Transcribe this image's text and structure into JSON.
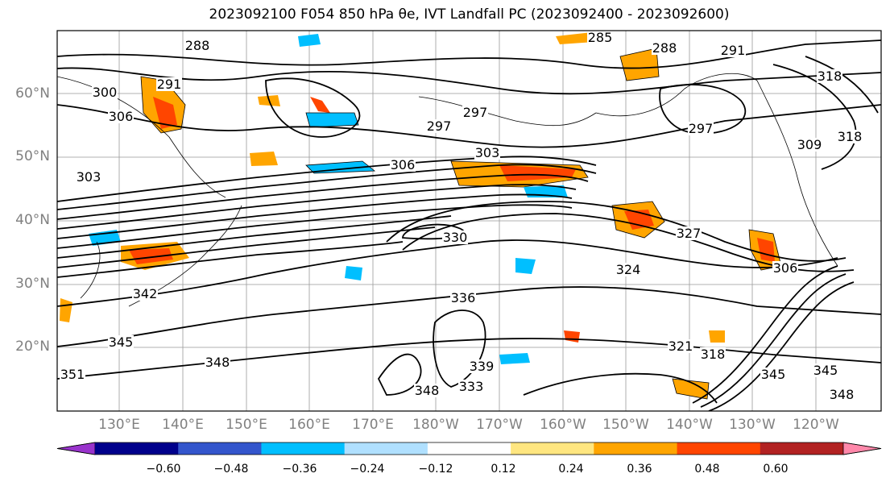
{
  "title": "2023092100 F054 850 hPa θe, IVT Landfall PC (2023092400 - 2023092600)",
  "map": {
    "lat_labels": [
      "60°N",
      "50°N",
      "40°N",
      "30°N",
      "20°N"
    ],
    "lon_labels": [
      "130°E",
      "140°E",
      "150°E",
      "160°E",
      "170°E",
      "180°W",
      "170°W",
      "160°W",
      "150°W",
      "140°W",
      "130°W",
      "120°W"
    ],
    "contour_labels": [
      "288",
      "285",
      "288",
      "291",
      "318",
      "300",
      "291",
      "306",
      "297",
      "297",
      "297",
      "303",
      "303",
      "306",
      "309",
      "318",
      "330",
      "327",
      "324",
      "306",
      "342",
      "336",
      "339",
      "333",
      "348",
      "345",
      "348",
      "351",
      "345",
      "321",
      "318",
      "345",
      "348"
    ]
  },
  "colorbar": {
    "colors": [
      "#9933cc",
      "#00008b",
      "#3355cc",
      "#00bfff",
      "#b0e0ff",
      "#ffffff",
      "#ffe680",
      "#ffa500",
      "#ff4500",
      "#b22222",
      "#ff88aa"
    ],
    "tick_labels": [
      "−0.60",
      "−0.48",
      "−0.36",
      "−0.24",
      "−0.12",
      "0.12",
      "0.24",
      "0.36",
      "0.48",
      "0.60"
    ]
  }
}
